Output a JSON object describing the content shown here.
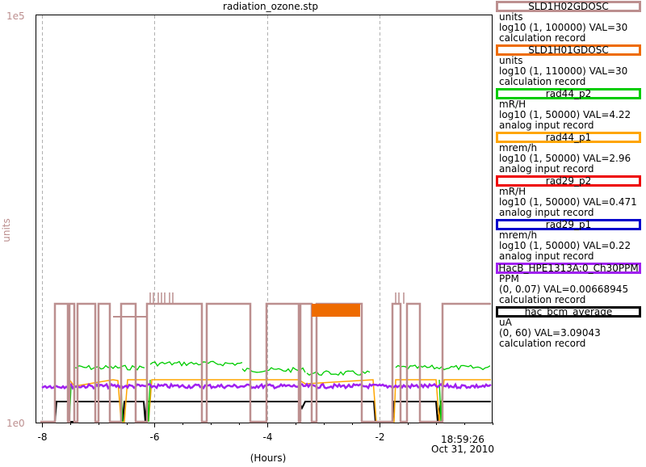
{
  "title": "radiation_ozone.stp",
  "chart_data": {
    "type": "line",
    "title": "radiation_ozone.stp",
    "xlabel": "(Hours)",
    "ylabel": "units",
    "xlim": [
      -8.1,
      0.0
    ],
    "yscale": "log",
    "ylim_labels": [
      "1e0",
      "1e5"
    ],
    "x_ticks": [
      "-8",
      "-6",
      "-4",
      "-2"
    ],
    "grid": true,
    "grid_x": [
      -8,
      -6,
      -4,
      -2
    ],
    "legend_position": "right",
    "series": [
      {
        "name": "SLD1H02GDOSC",
        "color": "#bc8f8f",
        "unit": "units",
        "range": "log10 (1, 100000) VAL=30",
        "record": "calculation record"
      },
      {
        "name": "SLD1H01GDOSC",
        "color": "#ee6b00",
        "unit": "units",
        "range": "log10 (1, 110000) VAL=30",
        "record": "calculation record"
      },
      {
        "name": "rad44_p2",
        "color": "#00cc00",
        "unit": "mR/H",
        "range": "log10 (1, 50000) VAL=4.22",
        "record": "analog input record"
      },
      {
        "name": "rad44_p1",
        "color": "#ffa500",
        "unit": "mrem/h",
        "range": "log10 (1, 50000) VAL=2.96",
        "record": "analog input record"
      },
      {
        "name": "rad29_p2",
        "color": "#ee0000",
        "unit": "mR/H",
        "range": "log10 (1, 50000) VAL=0.471",
        "record": "analog input record"
      },
      {
        "name": "rad29_p1",
        "color": "#0000cc",
        "unit": "mrem/h",
        "range": "log10 (1, 50000) VAL=0.22",
        "record": "analog input record"
      },
      {
        "name": "HacB_HPE1313A:0_Ch30PPM",
        "color": "#a020f0",
        "unit": "PPM",
        "range": "(0, 0.07) VAL=0.00668945",
        "record": "calculation record"
      },
      {
        "name": "hac_bcm_average",
        "color": "#000000",
        "unit": "uA",
        "range": "(0, 60) VAL=3.09043",
        "record": "calculation record"
      }
    ]
  },
  "axes": {
    "y_top": "1e5",
    "y_bottom": "1e0",
    "y_label": "units",
    "x_label": "(Hours)",
    "time": "18:59:26",
    "date": "Oct 31, 2010"
  }
}
